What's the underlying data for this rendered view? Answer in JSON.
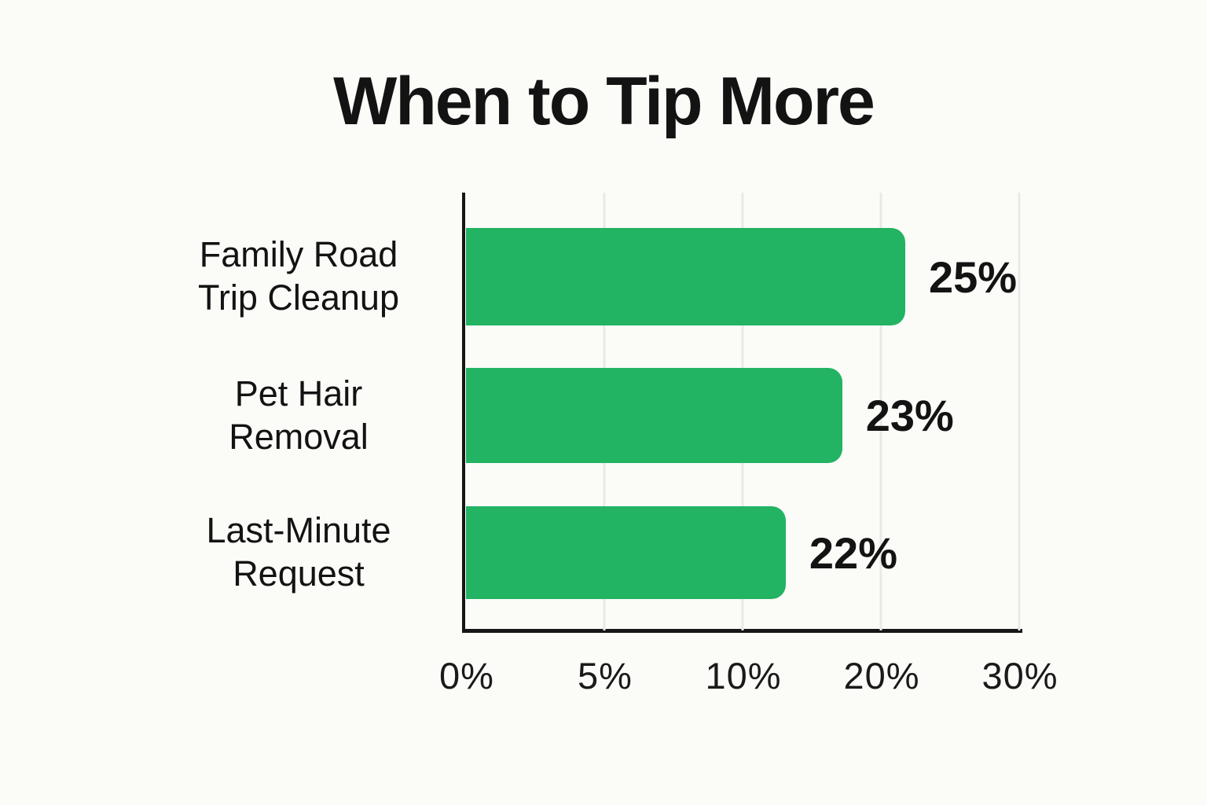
{
  "title": "When to Tip More",
  "chart_data": {
    "type": "bar",
    "orientation": "horizontal",
    "title": "When to Tip More",
    "categories": [
      "Family Road\nTrip Cleanup",
      "Pet Hair\nRemoval",
      "Last-Minute\nRequest"
    ],
    "values": [
      25,
      23,
      22
    ],
    "value_labels": [
      "25%",
      "23%",
      "22%"
    ],
    "x_ticks": [
      "0%",
      "5%",
      "10%",
      "20%",
      "30%"
    ],
    "x_tick_values": [
      0,
      5,
      10,
      20,
      30
    ],
    "xlim": [
      0,
      30
    ],
    "grid": "vertical-light-gray",
    "legend": "none",
    "bar_visual_pct": [
      79.4,
      68.0,
      57.8
    ],
    "colors": {
      "bar": "#22b363",
      "text": "#141414",
      "grid": "#e9e9e6",
      "axis": "#161616",
      "background": "#fbfbf8"
    }
  }
}
